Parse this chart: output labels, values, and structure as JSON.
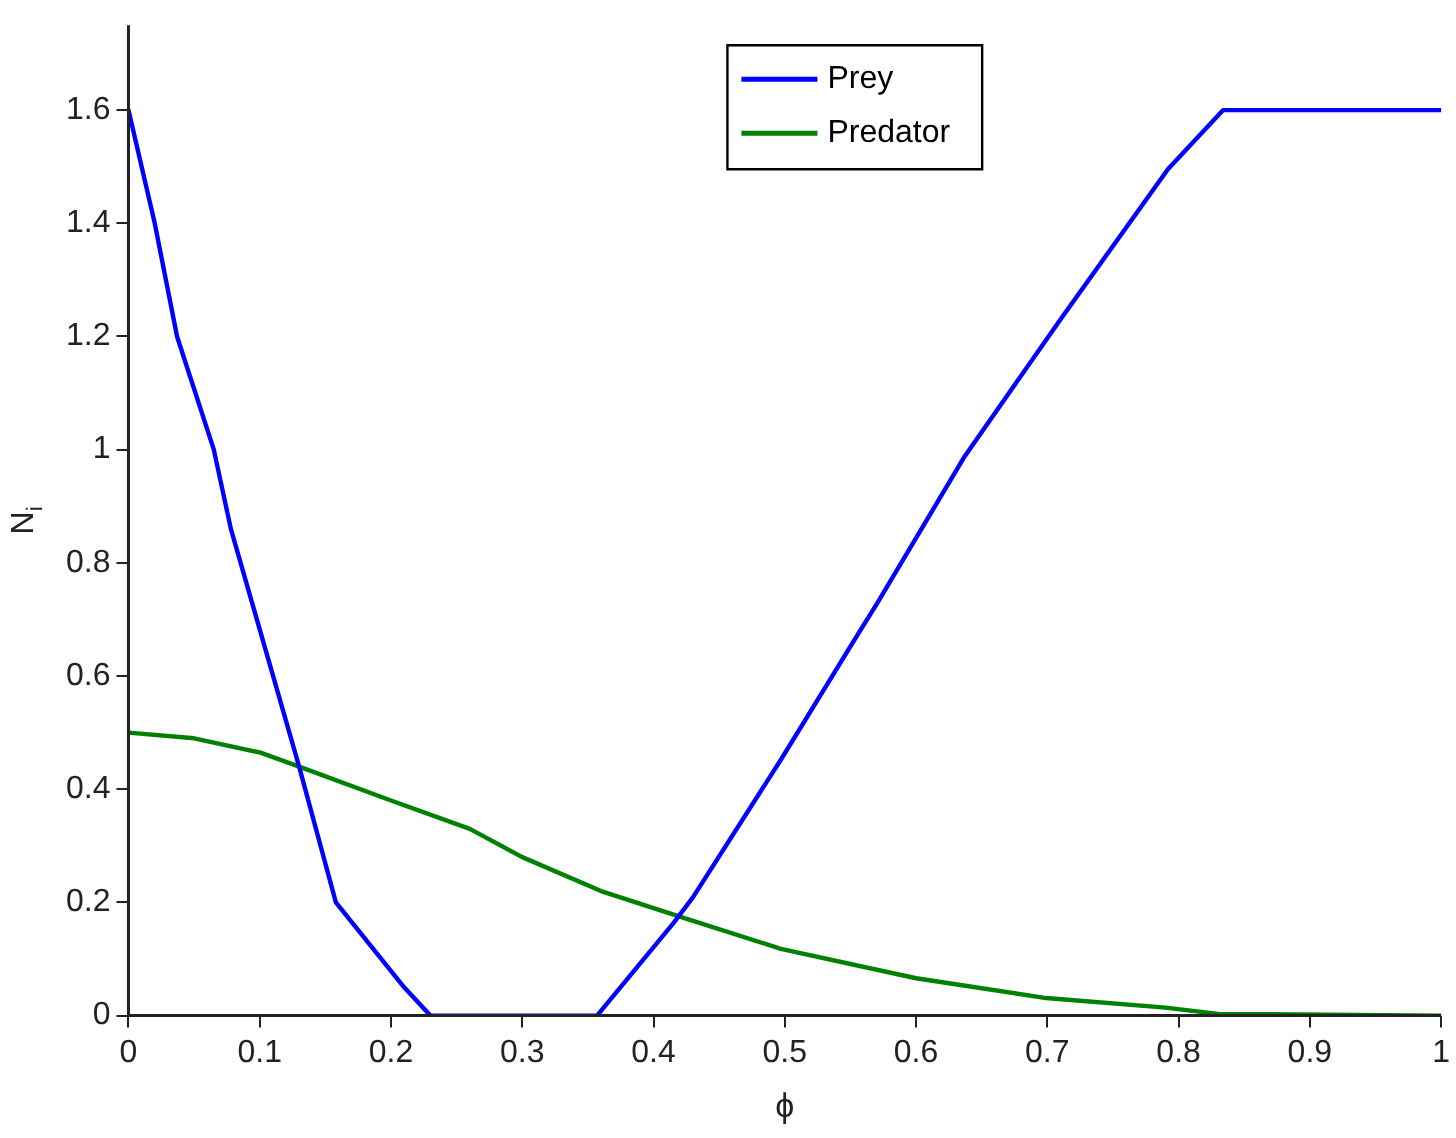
{
  "chart_data": {
    "type": "line",
    "xlabel": "ϕ",
    "ylabel": "N$_{i}$",
    "xlim": [
      0,
      1
    ],
    "xticks": [
      0,
      0.1,
      0.2,
      0.3,
      0.4,
      0.5,
      0.6,
      0.7,
      0.8,
      0.9,
      1
    ],
    "ylim": [
      0,
      1.75
    ],
    "yticks": [
      0,
      0.2,
      0.4,
      0.6,
      0.8,
      1,
      1.2,
      1.4,
      1.6
    ],
    "grid": false,
    "legend": "top",
    "marker": "none",
    "line_style": "solid",
    "series": [
      {
        "name": "Prey",
        "color": "#0000ff",
        "x": [
          0,
          0.02,
          0.037,
          0.065,
          0.078,
          0.13,
          0.158,
          0.21,
          0.23,
          0.357,
          0.415,
          0.43,
          0.497,
          0.556,
          0.57,
          0.637,
          0.71,
          0.792,
          0.834,
          1
        ],
        "values": [
          1.6,
          1.4,
          1.2,
          1.0,
          0.86,
          0.44,
          0.2,
          0.05,
          0,
          0,
          0.163,
          0.209,
          0.452,
          0.675,
          0.727,
          0.988,
          1.23,
          1.496,
          1.6,
          1.6
        ]
      },
      {
        "name": "Predator",
        "color": "#008000",
        "x": [
          0,
          0.05,
          0.1,
          0.13,
          0.2,
          0.26,
          0.3,
          0.36,
          0.42,
          0.497,
          0.6,
          0.699,
          0.79,
          0.83,
          1
        ],
        "values": [
          0.5,
          0.49,
          0.465,
          0.44,
          0.38,
          0.33,
          0.28,
          0.22,
          0.175,
          0.118,
          0.066,
          0.031,
          0.014,
          0.003,
          0
        ]
      }
    ]
  }
}
